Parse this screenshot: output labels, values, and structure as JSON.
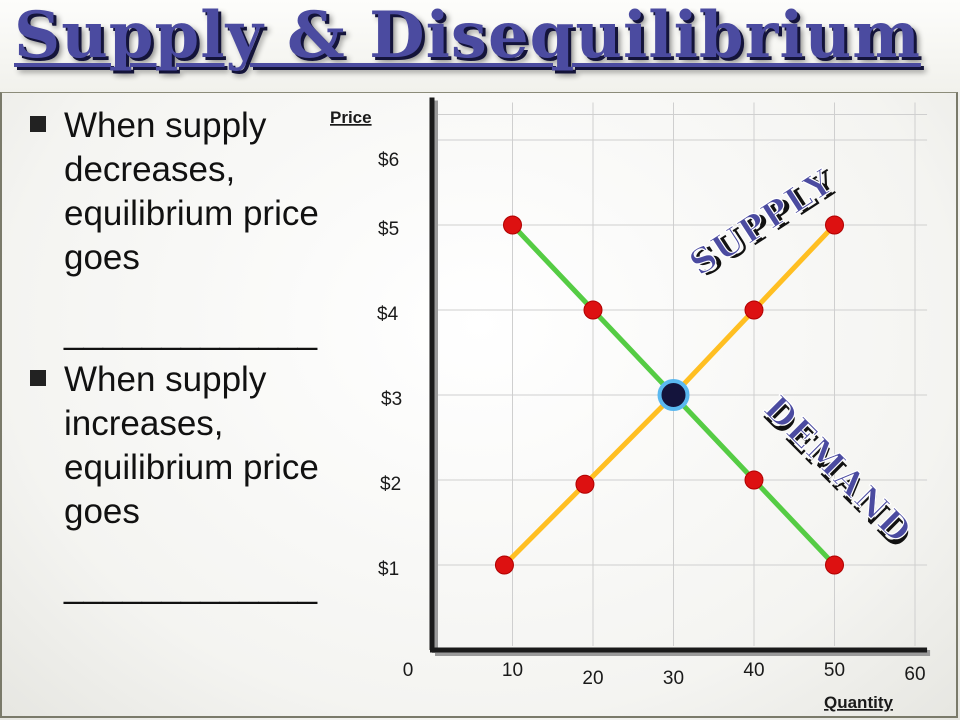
{
  "slide": {
    "title": "Supply & Disequilibrium",
    "bullets": [
      {
        "text": "When supply decreases, equilibrium price goes",
        "blank": "_____________"
      },
      {
        "text": "When supply increases, equilibrium price goes",
        "blank": "_____________"
      }
    ]
  },
  "chart_data": {
    "type": "line",
    "xlabel": "Quantity",
    "ylabel": "Price",
    "x_ticks": [
      "0",
      "10",
      "20",
      "30",
      "40",
      "50",
      "60"
    ],
    "y_ticks": [
      "$1",
      "$2",
      "$3",
      "$4",
      "$5",
      "$6"
    ],
    "xlim": [
      0,
      60
    ],
    "ylim": [
      0,
      6.5
    ],
    "grid": true,
    "series": [
      {
        "name": "DEMAND",
        "color": "#55cc44",
        "x": [
          10,
          20,
          30,
          40,
          50
        ],
        "y": [
          5,
          4,
          3,
          2,
          1
        ]
      },
      {
        "name": "SUPPLY",
        "color": "#ffbf22",
        "x": [
          9,
          19,
          30,
          40,
          50
        ],
        "y": [
          1,
          1.95,
          3,
          4,
          5
        ]
      }
    ],
    "equilibrium": {
      "x": 30,
      "y": 3
    },
    "colors": {
      "point": "#dd1111",
      "equilibrium_fill": "#14143c",
      "equilibrium_ring": "#5ab8f0",
      "label_fill": "#4b4ba0"
    }
  }
}
